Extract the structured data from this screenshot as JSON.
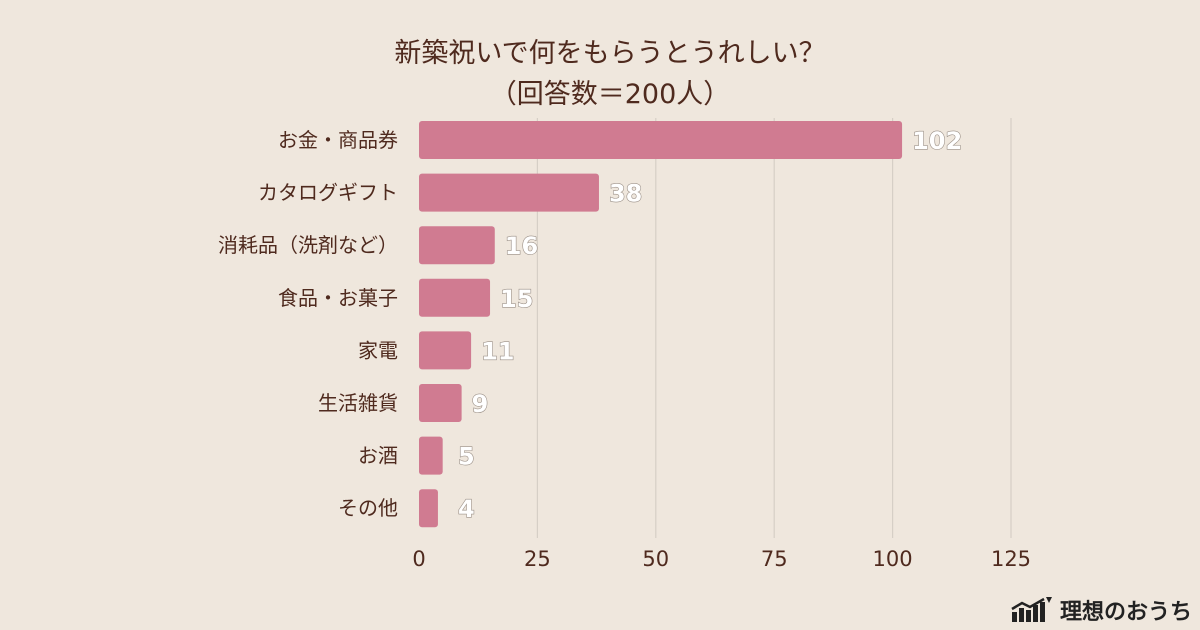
{
  "chart_data": {
    "type": "bar",
    "orientation": "horizontal",
    "title": "新築祝いで何をもらうとうれしい？",
    "subtitle": "（回答数＝200人）",
    "categories": [
      "お金・商品券",
      "カタログギフト",
      "消耗品（洗剤など）",
      "食品・お菓子",
      "家電",
      "生活雑貨",
      "お酒",
      "その他"
    ],
    "values": [
      102,
      38,
      16,
      15,
      11,
      9,
      5,
      4
    ],
    "xlim": [
      0,
      125
    ],
    "xticks": [
      0,
      25,
      50,
      75,
      100,
      125
    ],
    "grid": true,
    "colors": {
      "bar": "#d07b91",
      "background": "#efe7dd",
      "text": "#4f2a1e"
    }
  },
  "brand": {
    "name": "理想のおうち"
  }
}
